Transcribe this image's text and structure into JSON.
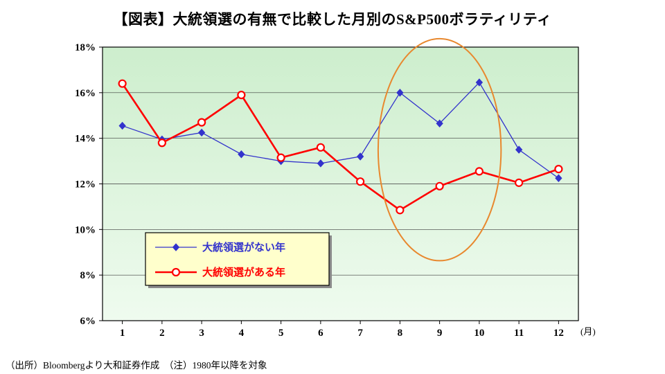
{
  "title": "【図表】大統領選の有無で比較した月別のS&P500ボラティリティ",
  "footnote": "（出所）Bloombergより大和証券作成　（注）1980年以降を対象",
  "chart_data": {
    "type": "line",
    "x": [
      1,
      2,
      3,
      4,
      5,
      6,
      7,
      8,
      9,
      10,
      11,
      12
    ],
    "x_unit_label": "(月)",
    "ylim": [
      6,
      18
    ],
    "ytick_step": 2,
    "ytick_suffix": "%",
    "grid": true,
    "plot_bg_top": "#cdeecd",
    "plot_bg_bottom": "#effbef",
    "series": [
      {
        "name": "大統領選がない年",
        "color": "#3333cc",
        "marker": "diamond",
        "line_width": 1.3,
        "values": [
          14.55,
          13.95,
          14.25,
          13.3,
          13.0,
          12.9,
          13.2,
          16.0,
          14.65,
          16.45,
          13.5,
          12.25
        ]
      },
      {
        "name": "大統領選がある年",
        "color": "#ff0000",
        "marker": "circle-open",
        "line_width": 2.6,
        "values": [
          16.4,
          13.8,
          14.7,
          15.9,
          13.15,
          13.6,
          12.1,
          10.85,
          11.9,
          12.55,
          12.05,
          12.65
        ]
      }
    ],
    "legend": {
      "bg": "#ffffcc",
      "border": "#000000",
      "position": "inside-lower-left"
    },
    "annotation_ellipse": {
      "center_month": 9,
      "center_pct": 13.5,
      "rx_months": 1.55,
      "ry_pct": 4.87,
      "color": "#e8882e"
    }
  }
}
